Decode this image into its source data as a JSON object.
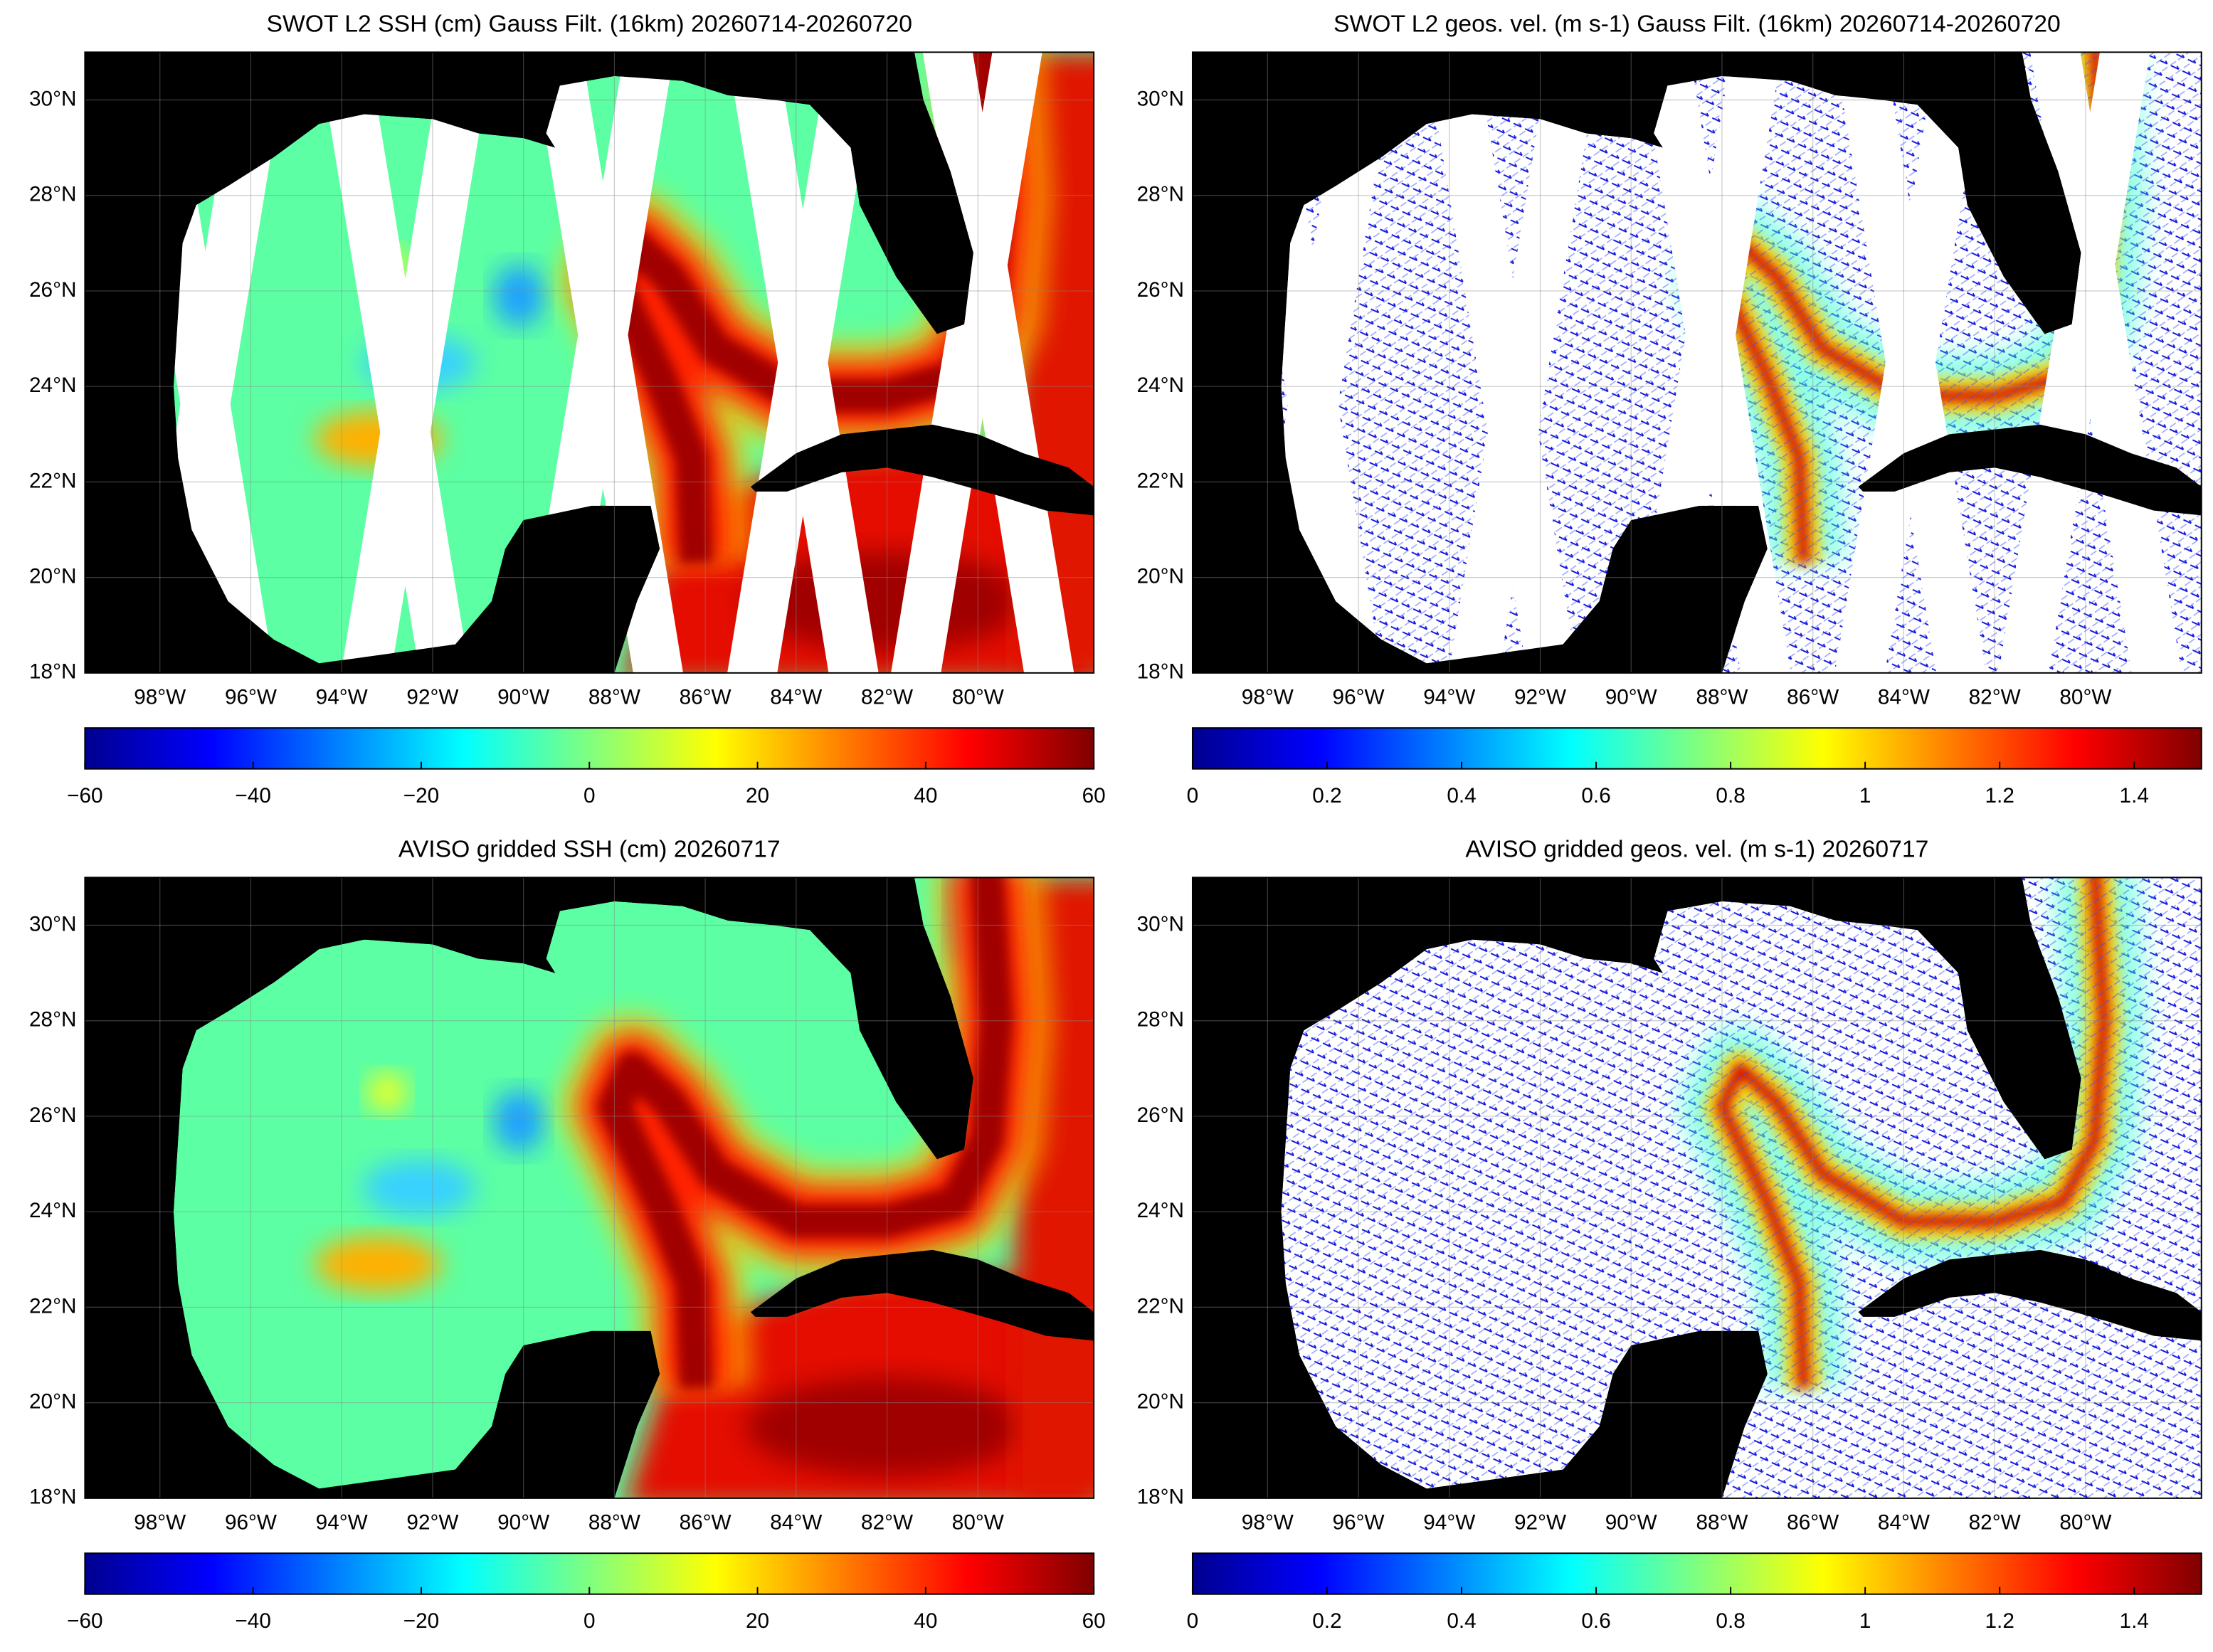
{
  "panels": [
    {
      "title": "SWOT L2 SSH (cm) Gauss Filt. (16km) 20260714-20260720",
      "variable": "ssh",
      "along_track": true,
      "xlim": [
        -99.65,
        -77.45
      ],
      "ylim": [
        18,
        31
      ],
      "xticks": [
        {
          "value": -98,
          "label": "98°W"
        },
        {
          "value": -96,
          "label": "96°W"
        },
        {
          "value": -94,
          "label": "94°W"
        },
        {
          "value": -92,
          "label": "92°W"
        },
        {
          "value": -90,
          "label": "90°W"
        },
        {
          "value": -88,
          "label": "88°W"
        },
        {
          "value": -86,
          "label": "86°W"
        },
        {
          "value": -84,
          "label": "84°W"
        },
        {
          "value": -82,
          "label": "82°W"
        },
        {
          "value": -80,
          "label": "80°W"
        }
      ],
      "yticks": [
        {
          "value": 18,
          "label": "18°N"
        },
        {
          "value": 20,
          "label": "20°N"
        },
        {
          "value": 22,
          "label": "22°N"
        },
        {
          "value": 24,
          "label": "24°N"
        },
        {
          "value": 26,
          "label": "26°N"
        },
        {
          "value": 28,
          "label": "28°N"
        },
        {
          "value": 30,
          "label": "30°N"
        }
      ],
      "colorbar": {
        "colormap": "jet",
        "lim": [
          -60,
          60
        ],
        "ticks": [
          {
            "value": -60,
            "label": "−60"
          },
          {
            "value": -40,
            "label": "−40"
          },
          {
            "value": -20,
            "label": "−20"
          },
          0,
          20,
          40,
          60
        ]
      }
    },
    {
      "title": "SWOT L2 geos. vel. (m s-1) Gauss Filt. (16km) 20260714-20260720",
      "variable": "velocity",
      "along_track": true,
      "xlim": [
        -99.65,
        -77.45
      ],
      "ylim": [
        18,
        31
      ],
      "xticks": [
        {
          "value": -98,
          "label": "98°W"
        },
        {
          "value": -96,
          "label": "96°W"
        },
        {
          "value": -94,
          "label": "94°W"
        },
        {
          "value": -92,
          "label": "92°W"
        },
        {
          "value": -90,
          "label": "90°W"
        },
        {
          "value": -88,
          "label": "88°W"
        },
        {
          "value": -86,
          "label": "86°W"
        },
        {
          "value": -84,
          "label": "84°W"
        },
        {
          "value": -82,
          "label": "82°W"
        },
        {
          "value": -80,
          "label": "80°W"
        }
      ],
      "yticks": [
        {
          "value": 18,
          "label": "18°N"
        },
        {
          "value": 20,
          "label": "20°N"
        },
        {
          "value": 22,
          "label": "22°N"
        },
        {
          "value": 24,
          "label": "24°N"
        },
        {
          "value": 26,
          "label": "26°N"
        },
        {
          "value": 28,
          "label": "28°N"
        },
        {
          "value": 30,
          "label": "30°N"
        }
      ],
      "colorbar": {
        "colormap": "jet",
        "lim": [
          0,
          1.5
        ],
        "ticks": [
          0,
          0.2,
          0.4,
          0.6,
          0.8,
          1,
          1.2,
          1.4
        ]
      }
    },
    {
      "title": "AVISO gridded SSH (cm) 20260717",
      "variable": "ssh",
      "along_track": false,
      "xlim": [
        -99.65,
        -77.45
      ],
      "ylim": [
        18,
        31
      ],
      "xticks": [
        {
          "value": -98,
          "label": "98°W"
        },
        {
          "value": -96,
          "label": "96°W"
        },
        {
          "value": -94,
          "label": "94°W"
        },
        {
          "value": -92,
          "label": "92°W"
        },
        {
          "value": -90,
          "label": "90°W"
        },
        {
          "value": -88,
          "label": "88°W"
        },
        {
          "value": -86,
          "label": "86°W"
        },
        {
          "value": -84,
          "label": "84°W"
        },
        {
          "value": -82,
          "label": "82°W"
        },
        {
          "value": -80,
          "label": "80°W"
        }
      ],
      "yticks": [
        {
          "value": 18,
          "label": "18°N"
        },
        {
          "value": 20,
          "label": "20°N"
        },
        {
          "value": 22,
          "label": "22°N"
        },
        {
          "value": 24,
          "label": "24°N"
        },
        {
          "value": 26,
          "label": "26°N"
        },
        {
          "value": 28,
          "label": "28°N"
        },
        {
          "value": 30,
          "label": "30°N"
        }
      ],
      "colorbar": {
        "colormap": "jet",
        "lim": [
          -60,
          60
        ],
        "ticks": [
          {
            "value": -60,
            "label": "−60"
          },
          {
            "value": -40,
            "label": "−40"
          },
          {
            "value": -20,
            "label": "−20"
          },
          0,
          20,
          40,
          60
        ]
      }
    },
    {
      "title": "AVISO gridded geos. vel. (m s-1)  20260717",
      "variable": "velocity",
      "along_track": false,
      "xlim": [
        -99.65,
        -77.45
      ],
      "ylim": [
        18,
        31
      ],
      "xticks": [
        {
          "value": -98,
          "label": "98°W"
        },
        {
          "value": -96,
          "label": "96°W"
        },
        {
          "value": -94,
          "label": "94°W"
        },
        {
          "value": -92,
          "label": "92°W"
        },
        {
          "value": -90,
          "label": "90°W"
        },
        {
          "value": -88,
          "label": "88°W"
        },
        {
          "value": -86,
          "label": "86°W"
        },
        {
          "value": -84,
          "label": "84°W"
        },
        {
          "value": -82,
          "label": "82°W"
        },
        {
          "value": -80,
          "label": "80°W"
        }
      ],
      "yticks": [
        {
          "value": 18,
          "label": "18°N"
        },
        {
          "value": 20,
          "label": "20°N"
        },
        {
          "value": 22,
          "label": "22°N"
        },
        {
          "value": 24,
          "label": "24°N"
        },
        {
          "value": 26,
          "label": "26°N"
        },
        {
          "value": 28,
          "label": "28°N"
        },
        {
          "value": 30,
          "label": "30°N"
        }
      ],
      "colorbar": {
        "colormap": "jet",
        "lim": [
          0,
          1.5
        ],
        "ticks": [
          0,
          0.2,
          0.4,
          0.6,
          0.8,
          1,
          1.2,
          1.4
        ]
      }
    }
  ]
}
